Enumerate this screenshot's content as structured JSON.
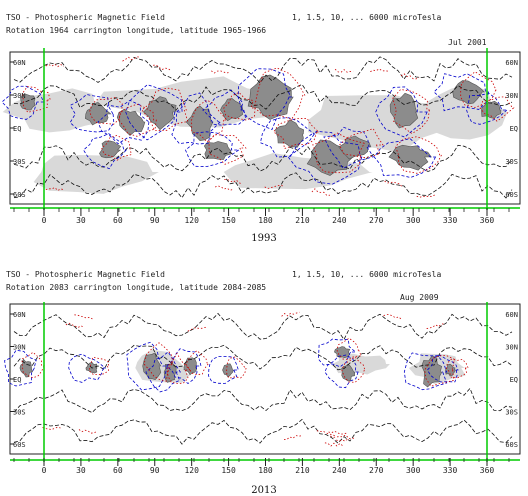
{
  "panels": [
    {
      "id": "upper",
      "header_line1_left": "TSO - Photospheric Magnetic Field",
      "header_line1_right": "1, 1.5, 10, ... 6000 microTesla",
      "header_line2": "Rotation 1964 carrington longitude, latitude 1965-1966",
      "header_date": "Jul 2001",
      "left_axis_labels": [
        "60N",
        "30N",
        "EQ",
        "30S",
        "60S"
      ],
      "right_axis_labels": [
        "60N",
        "30N",
        "EQ",
        "30S",
        "60S"
      ],
      "x_ticks": [
        "0",
        "30",
        "60",
        "90",
        "120",
        "150",
        "180",
        "210",
        "240",
        "270",
        "300",
        "330",
        "360"
      ],
      "year_label": "1993"
    },
    {
      "id": "lower",
      "header_line1_left": "TSO - Photospheric Magnetic Field",
      "header_line1_right": "1, 1.5, 10, ... 6000 microTesla",
      "header_line2": "Rotation 2083 carrington longitude, latitude 2084-2085",
      "header_date": "Aug 2009",
      "left_axis_labels": [
        "60N",
        "30N",
        "EQ",
        "30S",
        "60S"
      ],
      "right_axis_labels": [
        "60N",
        "30N",
        "EQ",
        "30S",
        "60S"
      ],
      "x_ticks": [
        "0",
        "30",
        "60",
        "90",
        "120",
        "150",
        "180",
        "210",
        "240",
        "270",
        "300",
        "330",
        "360"
      ],
      "year_label": "2013"
    }
  ],
  "colors": {
    "frame": "#222222",
    "boundary": "#00cc00",
    "positive": "#cc0000",
    "negative": "#0000cc",
    "neutral": "#111111",
    "active_region": "#8c8c8c",
    "light_region": "#d9d9d9"
  }
}
